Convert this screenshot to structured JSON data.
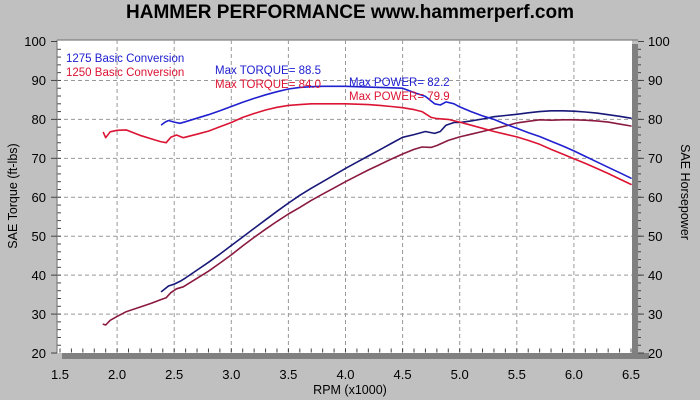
{
  "title": "HAMMER PERFORMANCE www.hammerperf.com",
  "colors": {
    "background": "#c0c0c0",
    "plot_background": "#ffffff",
    "grid": "#999999",
    "border_bar": "#808080",
    "tick": "#444444",
    "torque_1275": "#2020d0",
    "power_1275": "#181878",
    "torque_1250": "#dc1433",
    "power_1250": "#8a1a40"
  },
  "legend": {
    "rows": [
      {
        "run": "1275 Basic Conversion",
        "max_torque": "Max TORQUE= 88.5",
        "max_power": "Max POWER= 82.2",
        "color": "#2020d0"
      },
      {
        "run": "1250 Basic Conversion",
        "max_torque": "Max TORQUE= 84.0",
        "max_power": "Max POWER= 79.9",
        "color": "#dc1433"
      }
    ]
  },
  "axes": {
    "left_title": "SAE Torque (ft-lbs)",
    "right_title": "SAE Horsepower",
    "x_title": "RPM (x1000)",
    "y_tick_labels": [
      "100",
      "90",
      "80",
      "70",
      "60",
      "50",
      "40",
      "30",
      "20"
    ],
    "y_tick_values": [
      100,
      90,
      80,
      70,
      60,
      50,
      40,
      30,
      20
    ],
    "x_tick_labels": [
      "1.5",
      "2.0",
      "2.5",
      "3.0",
      "3.5",
      "4.0",
      "4.5",
      "5.0",
      "5.5",
      "6.0",
      "6.5"
    ],
    "x_tick_values": [
      1.5,
      2.0,
      2.5,
      3.0,
      3.5,
      4.0,
      4.5,
      5.0,
      5.5,
      6.0,
      6.5
    ]
  },
  "chart_data": {
    "type": "line",
    "title": "HAMMER PERFORMANCE www.hammerperf.com",
    "xlabel": "RPM (x1000)",
    "ylabel_left": "SAE Torque (ft-lbs)",
    "ylabel_right": "SAE Horsepower",
    "xlim": [
      1.5,
      6.5
    ],
    "ylim": [
      20,
      100
    ],
    "grid": "dashed",
    "legend_position": "top-left-inside",
    "series": [
      {
        "name": "1275 Basic Conversion — Torque (ft-lbs)",
        "color_key": "torque_1275",
        "max": 88.5,
        "points": [
          [
            2.39,
            78.6
          ],
          [
            2.42,
            79.3
          ],
          [
            2.45,
            79.7
          ],
          [
            2.5,
            79.3
          ],
          [
            2.55,
            79.0
          ],
          [
            2.6,
            79.4
          ],
          [
            2.7,
            80.3
          ],
          [
            2.8,
            81.2
          ],
          [
            2.9,
            82.2
          ],
          [
            3.0,
            83.3
          ],
          [
            3.1,
            84.4
          ],
          [
            3.2,
            85.4
          ],
          [
            3.3,
            86.3
          ],
          [
            3.4,
            87.1
          ],
          [
            3.5,
            87.8
          ],
          [
            3.6,
            88.2
          ],
          [
            3.7,
            88.4
          ],
          [
            3.8,
            88.5
          ],
          [
            3.9,
            88.5
          ],
          [
            4.0,
            88.5
          ],
          [
            4.1,
            88.4
          ],
          [
            4.2,
            88.3
          ],
          [
            4.3,
            88.2
          ],
          [
            4.4,
            88.1
          ],
          [
            4.5,
            88.0
          ],
          [
            4.6,
            86.9
          ],
          [
            4.7,
            85.9
          ],
          [
            4.78,
            84.0
          ],
          [
            4.83,
            83.7
          ],
          [
            4.88,
            84.5
          ],
          [
            4.95,
            84.0
          ],
          [
            5.0,
            83.2
          ],
          [
            5.1,
            82.0
          ],
          [
            5.2,
            80.9
          ],
          [
            5.3,
            80.0
          ],
          [
            5.4,
            78.8
          ],
          [
            5.5,
            77.7
          ],
          [
            5.6,
            76.6
          ],
          [
            5.7,
            75.6
          ],
          [
            5.8,
            74.4
          ],
          [
            5.9,
            73.2
          ],
          [
            6.0,
            71.9
          ],
          [
            6.1,
            70.5
          ],
          [
            6.2,
            69.1
          ],
          [
            6.3,
            67.7
          ],
          [
            6.4,
            66.3
          ],
          [
            6.5,
            64.9
          ]
        ]
      },
      {
        "name": "1275 Basic Conversion — Power (hp)",
        "color_key": "power_1275",
        "max": 82.2,
        "points": [
          [
            2.39,
            35.8
          ],
          [
            2.42,
            36.5
          ],
          [
            2.45,
            37.2
          ],
          [
            2.5,
            37.7
          ],
          [
            2.55,
            38.4
          ],
          [
            2.6,
            39.3
          ],
          [
            2.7,
            41.3
          ],
          [
            2.8,
            43.3
          ],
          [
            2.9,
            45.4
          ],
          [
            3.0,
            47.6
          ],
          [
            3.1,
            49.8
          ],
          [
            3.2,
            52.0
          ],
          [
            3.3,
            54.2
          ],
          [
            3.4,
            56.4
          ],
          [
            3.5,
            58.5
          ],
          [
            3.6,
            60.5
          ],
          [
            3.7,
            62.3
          ],
          [
            3.8,
            64.0
          ],
          [
            3.9,
            65.7
          ],
          [
            4.0,
            67.4
          ],
          [
            4.1,
            69.0
          ],
          [
            4.2,
            70.6
          ],
          [
            4.3,
            72.2
          ],
          [
            4.4,
            73.8
          ],
          [
            4.5,
            75.4
          ],
          [
            4.6,
            76.1
          ],
          [
            4.7,
            76.9
          ],
          [
            4.78,
            76.4
          ],
          [
            4.83,
            76.9
          ],
          [
            4.88,
            78.5
          ],
          [
            4.95,
            79.2
          ],
          [
            5.0,
            79.2
          ],
          [
            5.1,
            79.6
          ],
          [
            5.2,
            80.1
          ],
          [
            5.3,
            80.7
          ],
          [
            5.4,
            81.0
          ],
          [
            5.5,
            81.3
          ],
          [
            5.6,
            81.7
          ],
          [
            5.7,
            82.0
          ],
          [
            5.8,
            82.2
          ],
          [
            5.9,
            82.2
          ],
          [
            6.0,
            82.1
          ],
          [
            6.1,
            81.9
          ],
          [
            6.2,
            81.6
          ],
          [
            6.3,
            81.2
          ],
          [
            6.4,
            80.8
          ],
          [
            6.5,
            80.3
          ]
        ]
      },
      {
        "name": "1250 Basic Conversion — Torque (ft-lbs)",
        "color_key": "torque_1250",
        "max": 84.0,
        "points": [
          [
            1.88,
            76.6
          ],
          [
            1.9,
            75.3
          ],
          [
            1.94,
            76.8
          ],
          [
            2.0,
            77.2
          ],
          [
            2.08,
            77.3
          ],
          [
            2.2,
            75.9
          ],
          [
            2.3,
            75.0
          ],
          [
            2.38,
            74.3
          ],
          [
            2.43,
            74.0
          ],
          [
            2.47,
            75.4
          ],
          [
            2.52,
            76.0
          ],
          [
            2.58,
            75.3
          ],
          [
            2.7,
            76.2
          ],
          [
            2.8,
            77.0
          ],
          [
            2.9,
            78.1
          ],
          [
            3.0,
            79.2
          ],
          [
            3.1,
            80.5
          ],
          [
            3.2,
            81.5
          ],
          [
            3.3,
            82.4
          ],
          [
            3.4,
            83.1
          ],
          [
            3.5,
            83.6
          ],
          [
            3.6,
            83.8
          ],
          [
            3.7,
            84.0
          ],
          [
            3.8,
            84.0
          ],
          [
            3.9,
            84.0
          ],
          [
            4.0,
            84.0
          ],
          [
            4.1,
            83.9
          ],
          [
            4.2,
            83.8
          ],
          [
            4.3,
            83.6
          ],
          [
            4.4,
            83.3
          ],
          [
            4.5,
            83.0
          ],
          [
            4.6,
            82.5
          ],
          [
            4.67,
            82.0
          ],
          [
            4.75,
            80.5
          ],
          [
            4.8,
            80.2
          ],
          [
            4.9,
            80.0
          ],
          [
            5.0,
            79.3
          ],
          [
            5.1,
            78.5
          ],
          [
            5.2,
            77.7
          ],
          [
            5.3,
            76.9
          ],
          [
            5.4,
            76.2
          ],
          [
            5.5,
            75.5
          ],
          [
            5.6,
            74.6
          ],
          [
            5.7,
            73.6
          ],
          [
            5.8,
            72.3
          ],
          [
            5.9,
            71.1
          ],
          [
            6.0,
            69.9
          ],
          [
            6.1,
            68.7
          ],
          [
            6.2,
            67.4
          ],
          [
            6.3,
            66.1
          ],
          [
            6.4,
            64.7
          ],
          [
            6.5,
            63.3
          ]
        ]
      },
      {
        "name": "1250 Basic Conversion — Power (hp)",
        "color_key": "power_1250",
        "max": 79.9,
        "points": [
          [
            1.88,
            27.4
          ],
          [
            1.9,
            27.2
          ],
          [
            1.94,
            28.4
          ],
          [
            2.0,
            29.4
          ],
          [
            2.08,
            30.6
          ],
          [
            2.2,
            31.8
          ],
          [
            2.3,
            32.8
          ],
          [
            2.38,
            33.7
          ],
          [
            2.43,
            34.2
          ],
          [
            2.47,
            35.5
          ],
          [
            2.52,
            36.5
          ],
          [
            2.58,
            37.0
          ],
          [
            2.7,
            39.2
          ],
          [
            2.8,
            41.0
          ],
          [
            2.9,
            43.1
          ],
          [
            3.0,
            45.2
          ],
          [
            3.1,
            47.5
          ],
          [
            3.2,
            49.7
          ],
          [
            3.3,
            51.8
          ],
          [
            3.4,
            53.8
          ],
          [
            3.5,
            55.7
          ],
          [
            3.6,
            57.4
          ],
          [
            3.7,
            59.2
          ],
          [
            3.8,
            60.8
          ],
          [
            3.9,
            62.4
          ],
          [
            4.0,
            64.0
          ],
          [
            4.1,
            65.5
          ],
          [
            4.2,
            67.0
          ],
          [
            4.3,
            68.4
          ],
          [
            4.4,
            69.8
          ],
          [
            4.5,
            71.1
          ],
          [
            4.6,
            72.3
          ],
          [
            4.67,
            72.9
          ],
          [
            4.75,
            72.8
          ],
          [
            4.8,
            73.3
          ],
          [
            4.9,
            74.6
          ],
          [
            5.0,
            75.5
          ],
          [
            5.1,
            76.2
          ],
          [
            5.2,
            76.9
          ],
          [
            5.3,
            77.6
          ],
          [
            5.4,
            78.3
          ],
          [
            5.5,
            79.1
          ],
          [
            5.6,
            79.5
          ],
          [
            5.7,
            79.9
          ],
          [
            5.8,
            79.8
          ],
          [
            5.9,
            79.9
          ],
          [
            6.0,
            79.9
          ],
          [
            6.1,
            79.8
          ],
          [
            6.2,
            79.6
          ],
          [
            6.3,
            79.3
          ],
          [
            6.4,
            78.8
          ],
          [
            6.5,
            78.3
          ]
        ]
      }
    ]
  }
}
